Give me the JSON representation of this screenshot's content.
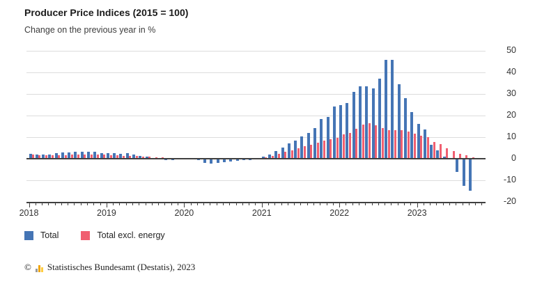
{
  "header": {
    "title": "Producer Price Indices (2015 = 100)",
    "subtitle": "Change on the previous year in %"
  },
  "legend": [
    {
      "label": "Total",
      "color": "#4575b5"
    },
    {
      "label": "Total excl. energy",
      "color": "#f05f70"
    }
  ],
  "footer": {
    "copyright": "©",
    "icon": "destatis-mini-bar-chart-icon",
    "text": "Statistisches Bundesamt (Destatis), 2023"
  },
  "colors": {
    "total": "#4575b5",
    "total_excl_energy": "#f05f70",
    "gridline": "#dcdcdc",
    "axis": "#3f3f3f"
  },
  "chart_data": {
    "type": "bar",
    "title": "Producer Price Indices (2015 = 100)",
    "subtitle": "Change on the previous year in %",
    "xlabel": "",
    "ylabel": "Change on the previous year in %",
    "x_start": "2018-01",
    "x_end": "2023-09",
    "x_year_labels": [
      "2018",
      "2019",
      "2020",
      "2021",
      "2022",
      "2023"
    ],
    "yticks": [
      50,
      40,
      30,
      20,
      10,
      0,
      -10,
      -20
    ],
    "ylim": [
      -20,
      50
    ],
    "grid": true,
    "legend_position": "bottom-left",
    "y_axis_side": "right",
    "series": [
      {
        "name": "Total",
        "color": "#4575b5",
        "values": [
          2.1,
          1.9,
          1.9,
          2.0,
          2.7,
          3.0,
          3.0,
          3.1,
          3.2,
          3.3,
          3.3,
          2.7,
          2.6,
          2.6,
          2.4,
          2.5,
          1.9,
          1.2,
          1.1,
          0.3,
          -0.1,
          -0.6,
          -0.7,
          -0.2,
          0.2,
          -0.1,
          -0.8,
          -1.9,
          -2.2,
          -1.8,
          -1.7,
          -1.2,
          -1.0,
          -0.7,
          -0.5,
          0.2,
          0.9,
          1.9,
          3.7,
          5.2,
          7.2,
          8.5,
          10.4,
          12.0,
          14.2,
          18.4,
          19.2,
          24.2,
          25.0,
          25.9,
          30.9,
          33.5,
          33.6,
          32.7,
          37.2,
          45.8,
          45.8,
          34.5,
          28.2,
          21.6,
          16.0,
          13.4,
          6.5,
          4.0,
          1.0,
          0.1,
          -6.0,
          -12.6,
          -14.7
        ]
      },
      {
        "name": "Total excl. energy",
        "color": "#f05f70",
        "values": [
          1.8,
          1.7,
          1.6,
          1.6,
          1.7,
          1.7,
          1.8,
          1.8,
          1.9,
          2.0,
          2.0,
          1.8,
          1.5,
          1.6,
          1.4,
          1.4,
          1.2,
          1.1,
          1.0,
          0.8,
          0.6,
          0.4,
          0.3,
          0.2,
          0.4,
          0.4,
          0.2,
          -0.1,
          -0.2,
          -0.2,
          -0.1,
          -0.1,
          -0.1,
          0.0,
          0.1,
          0.3,
          0.8,
          1.4,
          2.3,
          3.2,
          4.0,
          4.7,
          5.7,
          6.6,
          7.4,
          8.4,
          8.9,
          9.6,
          11.4,
          11.9,
          13.8,
          15.7,
          16.3,
          15.5,
          14.2,
          13.3,
          13.2,
          13.3,
          12.5,
          11.6,
          10.6,
          9.9,
          7.7,
          6.8,
          5.0,
          3.5,
          2.3,
          1.5,
          0.8
        ]
      }
    ]
  }
}
